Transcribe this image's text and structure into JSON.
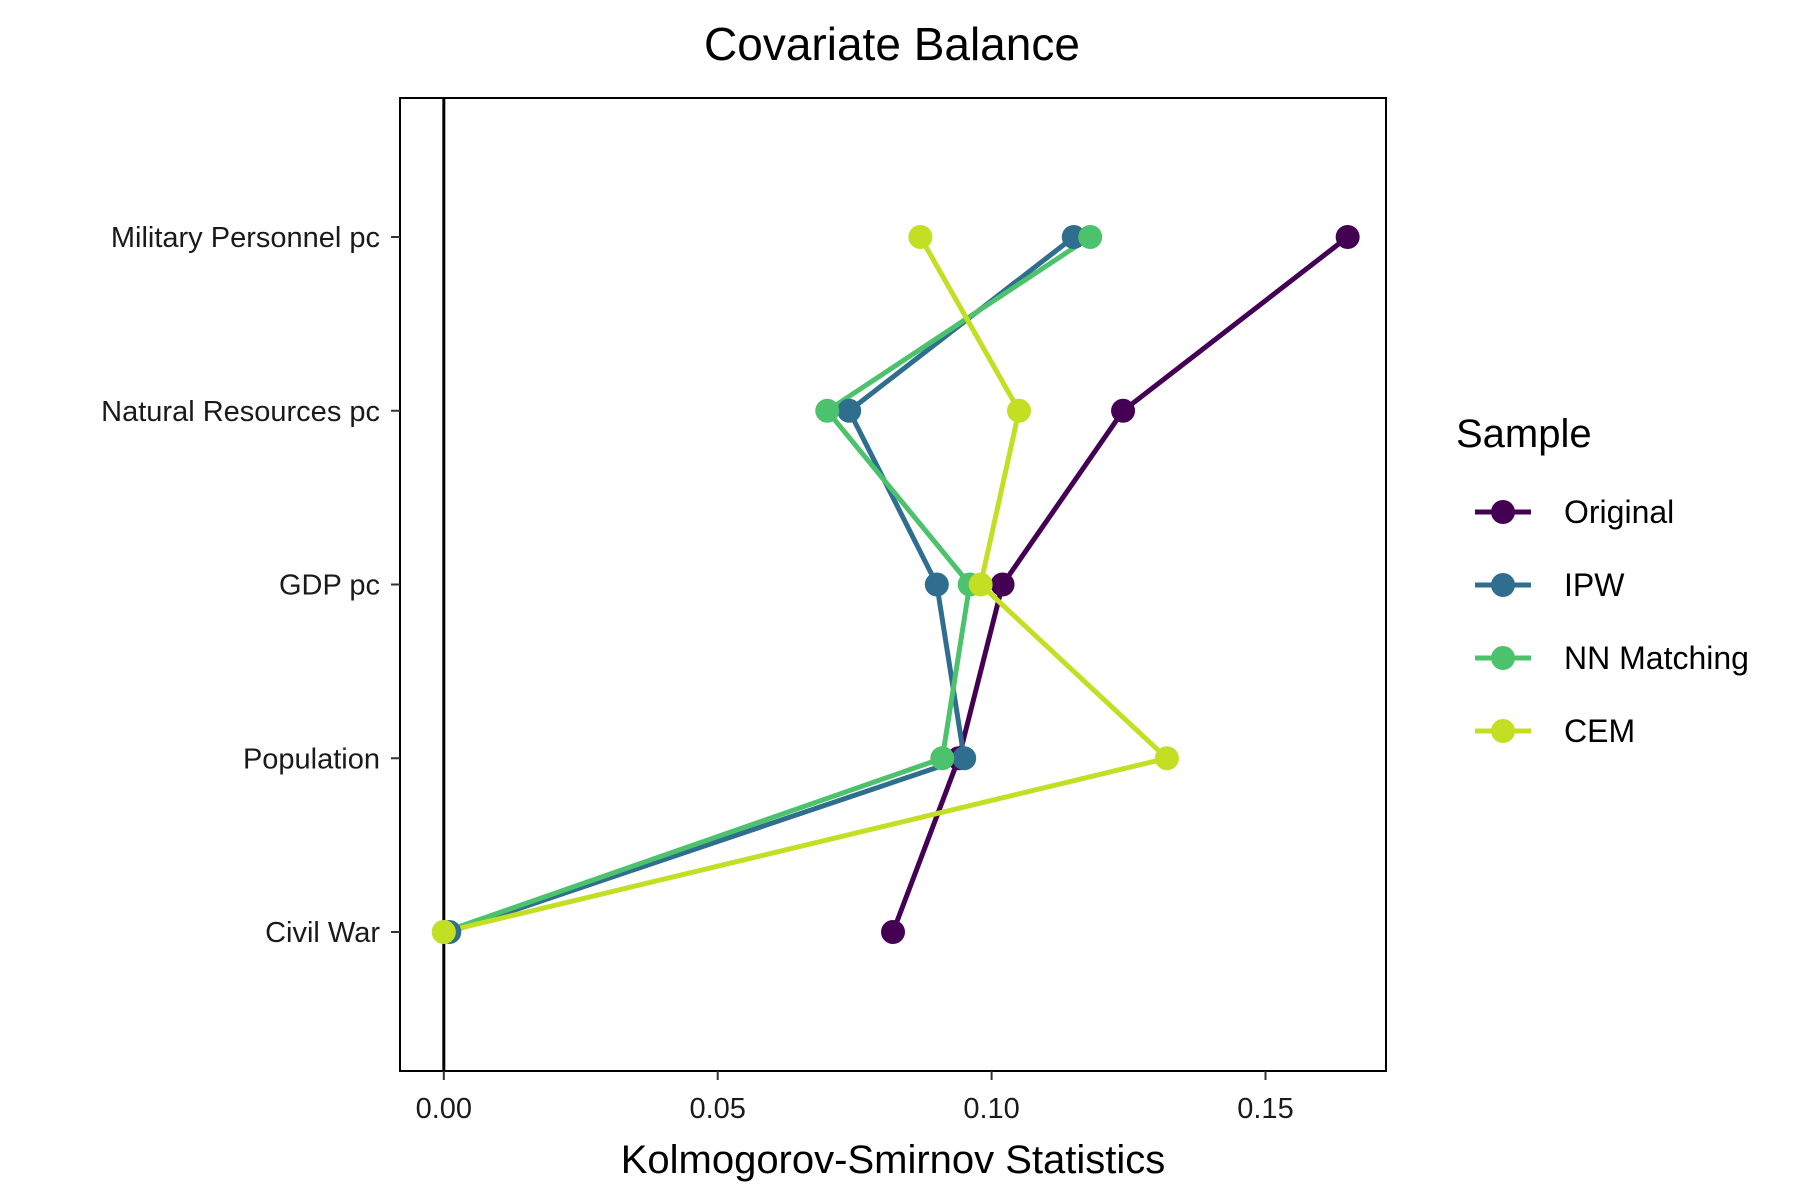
{
  "chart_data": {
    "type": "line",
    "title": "Covariate Balance",
    "xlabel": "Kolmogorov-Smirnov Statistics",
    "ylabel": "",
    "xlim": [
      -0.008,
      0.172
    ],
    "x_ticks": [
      0.0,
      0.05,
      0.1,
      0.15
    ],
    "x_tick_labels": [
      "0.00",
      "0.05",
      "0.10",
      "0.15"
    ],
    "categories": [
      "Civil War",
      "Population",
      "GDP pc",
      "Natural Resources pc",
      "Military Personnel pc"
    ],
    "reference_line_x": 0,
    "grid": false,
    "legend": {
      "title": "Sample",
      "position": "right"
    },
    "series": [
      {
        "name": "Original",
        "color": "#440154",
        "values": [
          0.082,
          0.094,
          0.102,
          0.124,
          0.165
        ]
      },
      {
        "name": "IPW",
        "color": "#2f6e8e",
        "values": [
          0.001,
          0.095,
          0.09,
          0.074,
          0.115
        ]
      },
      {
        "name": "NN Matching",
        "color": "#4cc26c",
        "values": [
          0.0,
          0.091,
          0.096,
          0.07,
          0.118
        ]
      },
      {
        "name": "CEM",
        "color": "#c2df23",
        "values": [
          0.0,
          0.132,
          0.098,
          0.105,
          0.087
        ]
      }
    ]
  }
}
